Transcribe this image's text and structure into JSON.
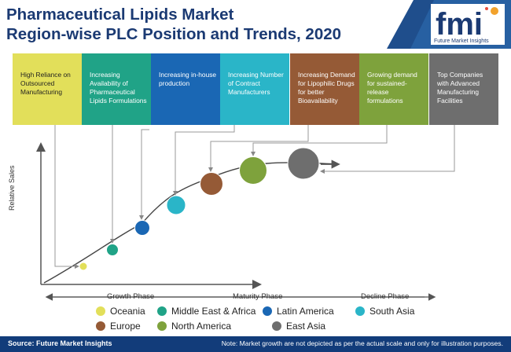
{
  "header": {
    "title_line1": "Pharmaceutical Lipids Market",
    "title_line2": "Region-wise PLC Position and Trends, 2020"
  },
  "brand": {
    "logo_text": "fmi",
    "name": "Future Market Insights"
  },
  "cards": [
    {
      "text": "High Reliance on Outsourced Manufacturing",
      "color": "#e2df5a"
    },
    {
      "text": "Increasing Availability of Pharmaceutical Lipids Formulations",
      "color": "#20a387"
    },
    {
      "text": "Increasing in-house production",
      "color": "#1a67b4"
    },
    {
      "text": "Increasing Number of Contract Manufacturers",
      "color": "#2ab5c8"
    },
    {
      "text": "Increasing Demand for Lipophilic Drugs for better Bioavailability",
      "color": "#955a36"
    },
    {
      "text": "Growing demand for sustained-release formulations",
      "color": "#7ea23c"
    },
    {
      "text": "Top Companies with Advanced Manufacturing Facilities",
      "color": "#6e6e6e"
    }
  ],
  "chart": {
    "ylabel": "Relative Sales",
    "phases": [
      "Growth Phase",
      "Maturity Phase",
      "Decline Phase"
    ]
  },
  "legend": [
    {
      "label": "Oceania",
      "color": "#e2df5a"
    },
    {
      "label": "Middle East & Africa",
      "color": "#20a387"
    },
    {
      "label": "Latin America",
      "color": "#1a67b4"
    },
    {
      "label": "South Asia",
      "color": "#2ab5c8"
    },
    {
      "label": "Europe",
      "color": "#955a36"
    },
    {
      "label": "North America",
      "color": "#7ea23c"
    },
    {
      "label": "East Asia",
      "color": "#6e6e6e"
    }
  ],
  "footer": {
    "source": "Source: Future Market Insights",
    "note": "Note: Market growth are not depicted as per the actual scale and only for illustration purposes."
  }
}
